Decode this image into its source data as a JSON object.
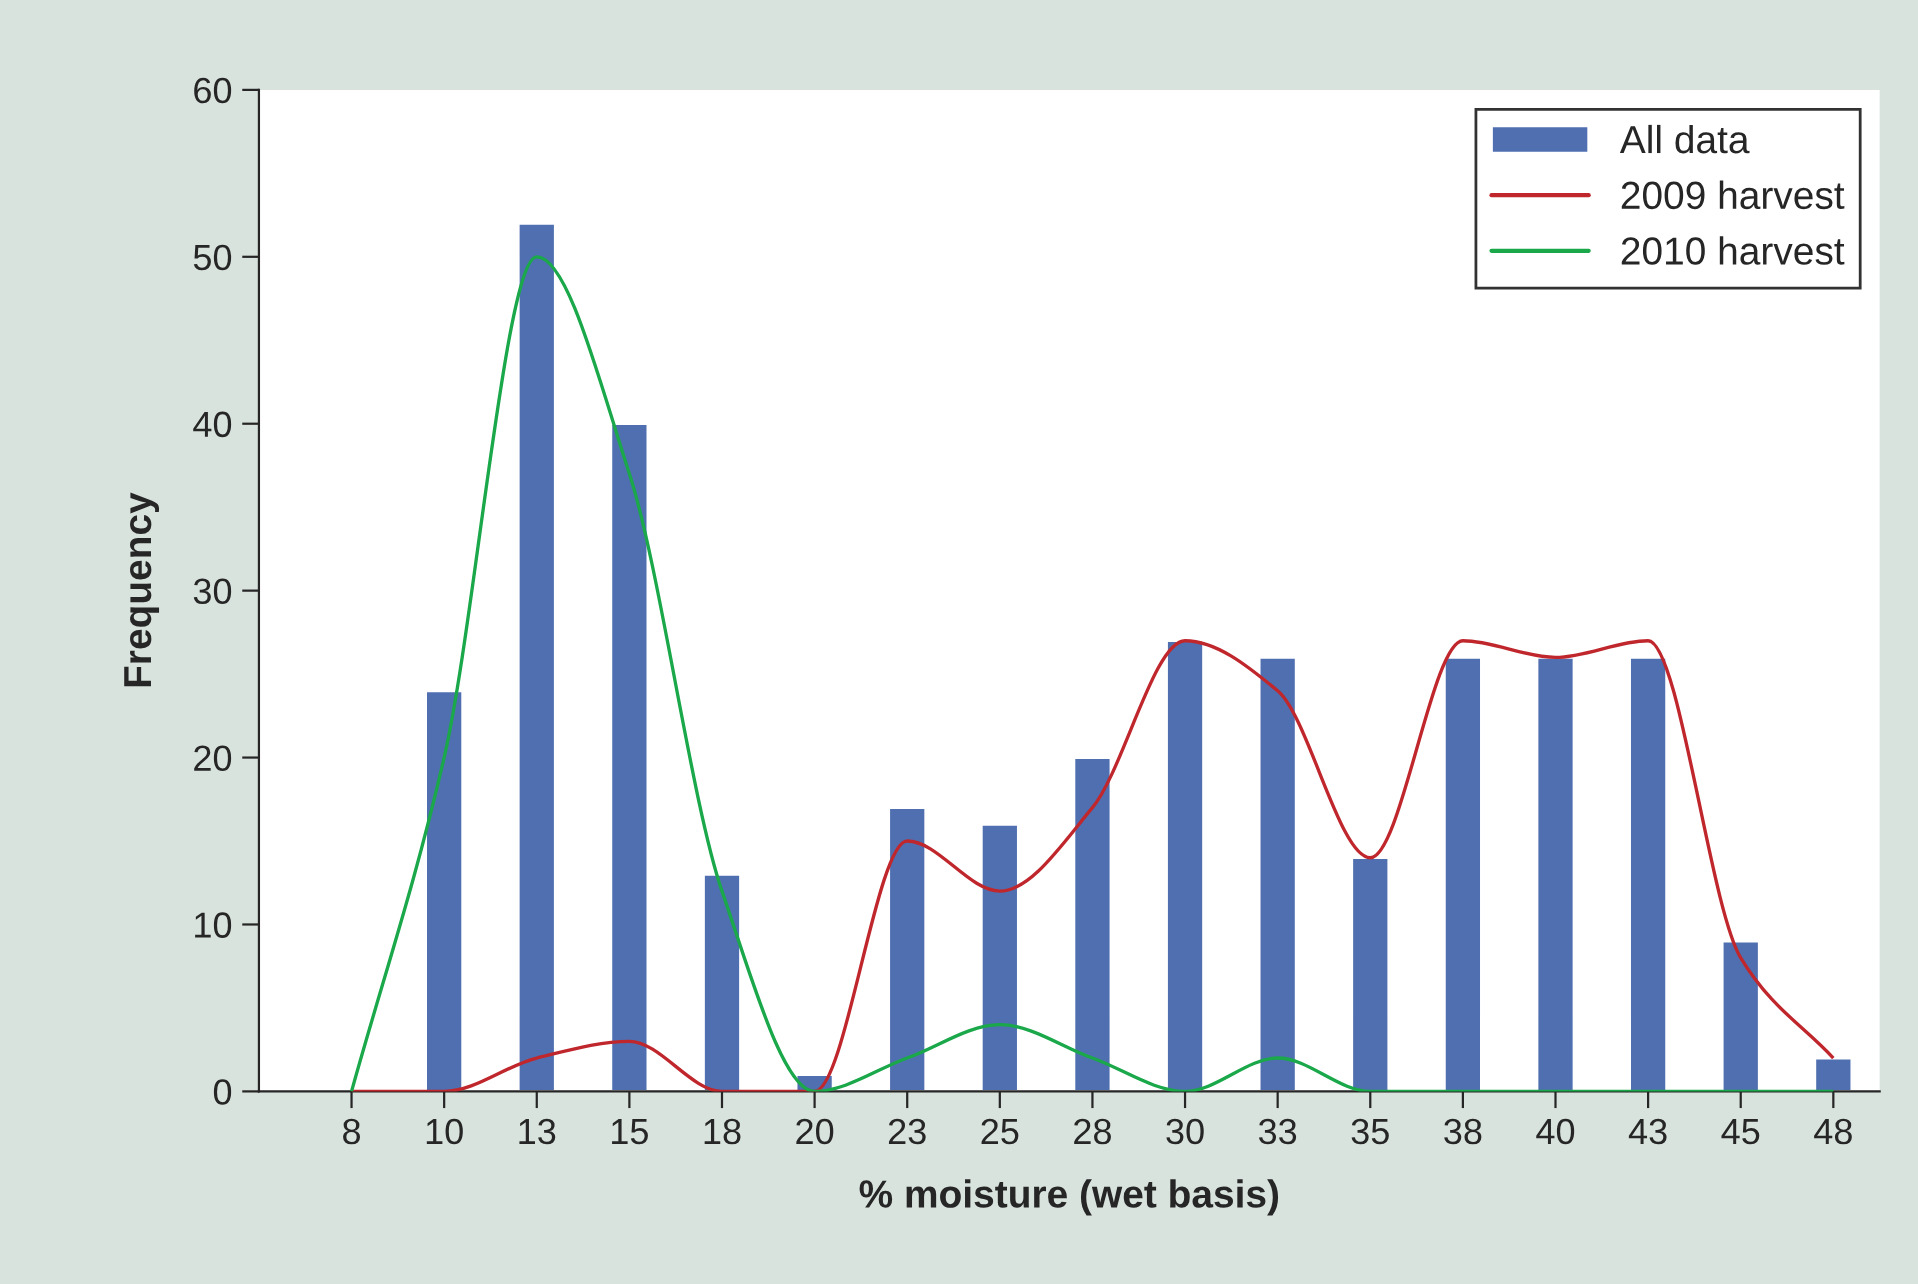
{
  "chart_data": {
    "type": "bar",
    "xlabel": "% moisture (wet basis)",
    "ylabel": "Frequency",
    "categories": [
      "8",
      "10",
      "13",
      "15",
      "18",
      "20",
      "23",
      "25",
      "28",
      "30",
      "33",
      "35",
      "38",
      "40",
      "43",
      "45",
      "48"
    ],
    "series": [
      {
        "name": "All data",
        "type": "bar",
        "color": "#4f6fb0",
        "values": [
          null,
          24,
          52,
          40,
          13,
          1,
          17,
          16,
          20,
          27,
          26,
          14,
          26,
          26,
          26,
          9,
          2
        ]
      },
      {
        "name": "2009 harvest",
        "type": "line",
        "color": "#c0272d",
        "values": [
          0,
          0,
          2,
          3,
          0,
          0,
          15,
          12,
          17,
          27,
          24,
          14,
          27,
          26,
          27,
          8,
          2
        ]
      },
      {
        "name": "2010 harvest",
        "type": "line",
        "color": "#1aa84a",
        "values": [
          0,
          20,
          50,
          37,
          12,
          0,
          2,
          4,
          2,
          0,
          2,
          0,
          0,
          0,
          0,
          0,
          0
        ]
      }
    ],
    "ylim": [
      0,
      60
    ],
    "yticks": [
      0,
      10,
      20,
      30,
      40,
      50,
      60
    ],
    "grid": false,
    "legend": "top right",
    "marker": "none",
    "line_style": "solid"
  }
}
